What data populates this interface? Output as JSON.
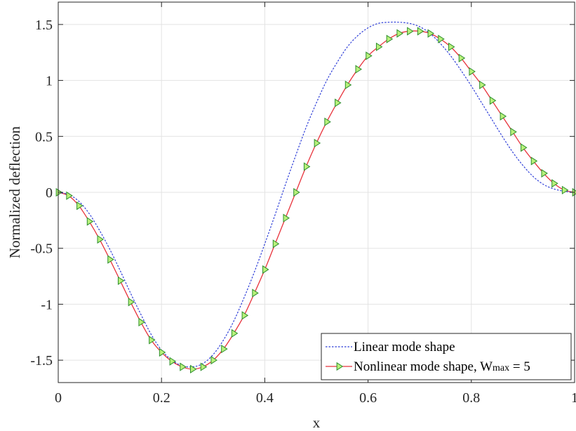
{
  "chart_data": {
    "type": "line",
    "title": "",
    "xlabel": "x",
    "ylabel": "Normalized deflection",
    "xlim": [
      0,
      1
    ],
    "ylim": [
      -1.7,
      1.7
    ],
    "grid": true,
    "legend_position": "bottom-right",
    "x_ticks": [
      "0",
      "0.2",
      "0.4",
      "0.6",
      "0.8",
      "1"
    ],
    "x_tick_values": [
      0,
      0.2,
      0.4,
      0.6,
      0.8,
      1
    ],
    "y_ticks": [
      "-1.5",
      "-1",
      "-0.5",
      "0",
      "0.5",
      "1",
      "1.5"
    ],
    "y_tick_values": [
      -1.5,
      -1,
      -0.5,
      0,
      0.5,
      1,
      1.5
    ],
    "series": [
      {
        "name": "Linear mode shape",
        "color": "#2f3fd8",
        "style": "dotted",
        "x": [
          0,
          0.02,
          0.04,
          0.06,
          0.08,
          0.1,
          0.12,
          0.14,
          0.16,
          0.18,
          0.2,
          0.22,
          0.24,
          0.26,
          0.28,
          0.3,
          0.32,
          0.34,
          0.36,
          0.38,
          0.4,
          0.42,
          0.44,
          0.46,
          0.48,
          0.5,
          0.52,
          0.54,
          0.56,
          0.58,
          0.6,
          0.62,
          0.64,
          0.66,
          0.68,
          0.7,
          0.72,
          0.74,
          0.76,
          0.78,
          0.8,
          0.82,
          0.84,
          0.86,
          0.88,
          0.9,
          0.92,
          0.94,
          0.96,
          0.98,
          1
        ],
        "values": [
          0,
          -0.02,
          -0.08,
          -0.19,
          -0.34,
          -0.51,
          -0.7,
          -0.9,
          -1.09,
          -1.27,
          -1.41,
          -1.5,
          -1.55,
          -1.56,
          -1.53,
          -1.45,
          -1.32,
          -1.15,
          -0.94,
          -0.71,
          -0.46,
          -0.2,
          0.07,
          0.33,
          0.58,
          0.8,
          1.0,
          1.16,
          1.3,
          1.4,
          1.47,
          1.51,
          1.52,
          1.52,
          1.51,
          1.48,
          1.42,
          1.33,
          1.22,
          1.09,
          0.95,
          0.8,
          0.65,
          0.5,
          0.36,
          0.24,
          0.14,
          0.07,
          0.03,
          0.01,
          0
        ]
      },
      {
        "name": "Nonlinear mode shape, W",
        "name_subscript": "max",
        "name_suffix": " = 5",
        "color": "#e8333c",
        "marker": "triangle-right",
        "marker_face": "#b8f07a",
        "marker_edge": "#2f8f2f",
        "x": [
          0,
          0.02,
          0.04,
          0.06,
          0.08,
          0.1,
          0.12,
          0.14,
          0.16,
          0.18,
          0.2,
          0.22,
          0.24,
          0.26,
          0.28,
          0.3,
          0.32,
          0.34,
          0.36,
          0.38,
          0.4,
          0.42,
          0.44,
          0.46,
          0.48,
          0.5,
          0.52,
          0.54,
          0.56,
          0.58,
          0.6,
          0.62,
          0.64,
          0.66,
          0.68,
          0.7,
          0.72,
          0.74,
          0.76,
          0.78,
          0.8,
          0.82,
          0.84,
          0.86,
          0.88,
          0.9,
          0.92,
          0.94,
          0.96,
          0.98,
          1
        ],
        "values": [
          0,
          -0.03,
          -0.12,
          -0.26,
          -0.42,
          -0.6,
          -0.79,
          -0.98,
          -1.16,
          -1.32,
          -1.43,
          -1.51,
          -1.56,
          -1.58,
          -1.56,
          -1.5,
          -1.4,
          -1.26,
          -1.1,
          -0.9,
          -0.69,
          -0.46,
          -0.23,
          0.0,
          0.23,
          0.44,
          0.63,
          0.8,
          0.96,
          1.1,
          1.22,
          1.3,
          1.37,
          1.42,
          1.44,
          1.44,
          1.42,
          1.37,
          1.3,
          1.2,
          1.08,
          0.96,
          0.82,
          0.68,
          0.54,
          0.4,
          0.28,
          0.17,
          0.08,
          0.02,
          0
        ]
      }
    ]
  }
}
